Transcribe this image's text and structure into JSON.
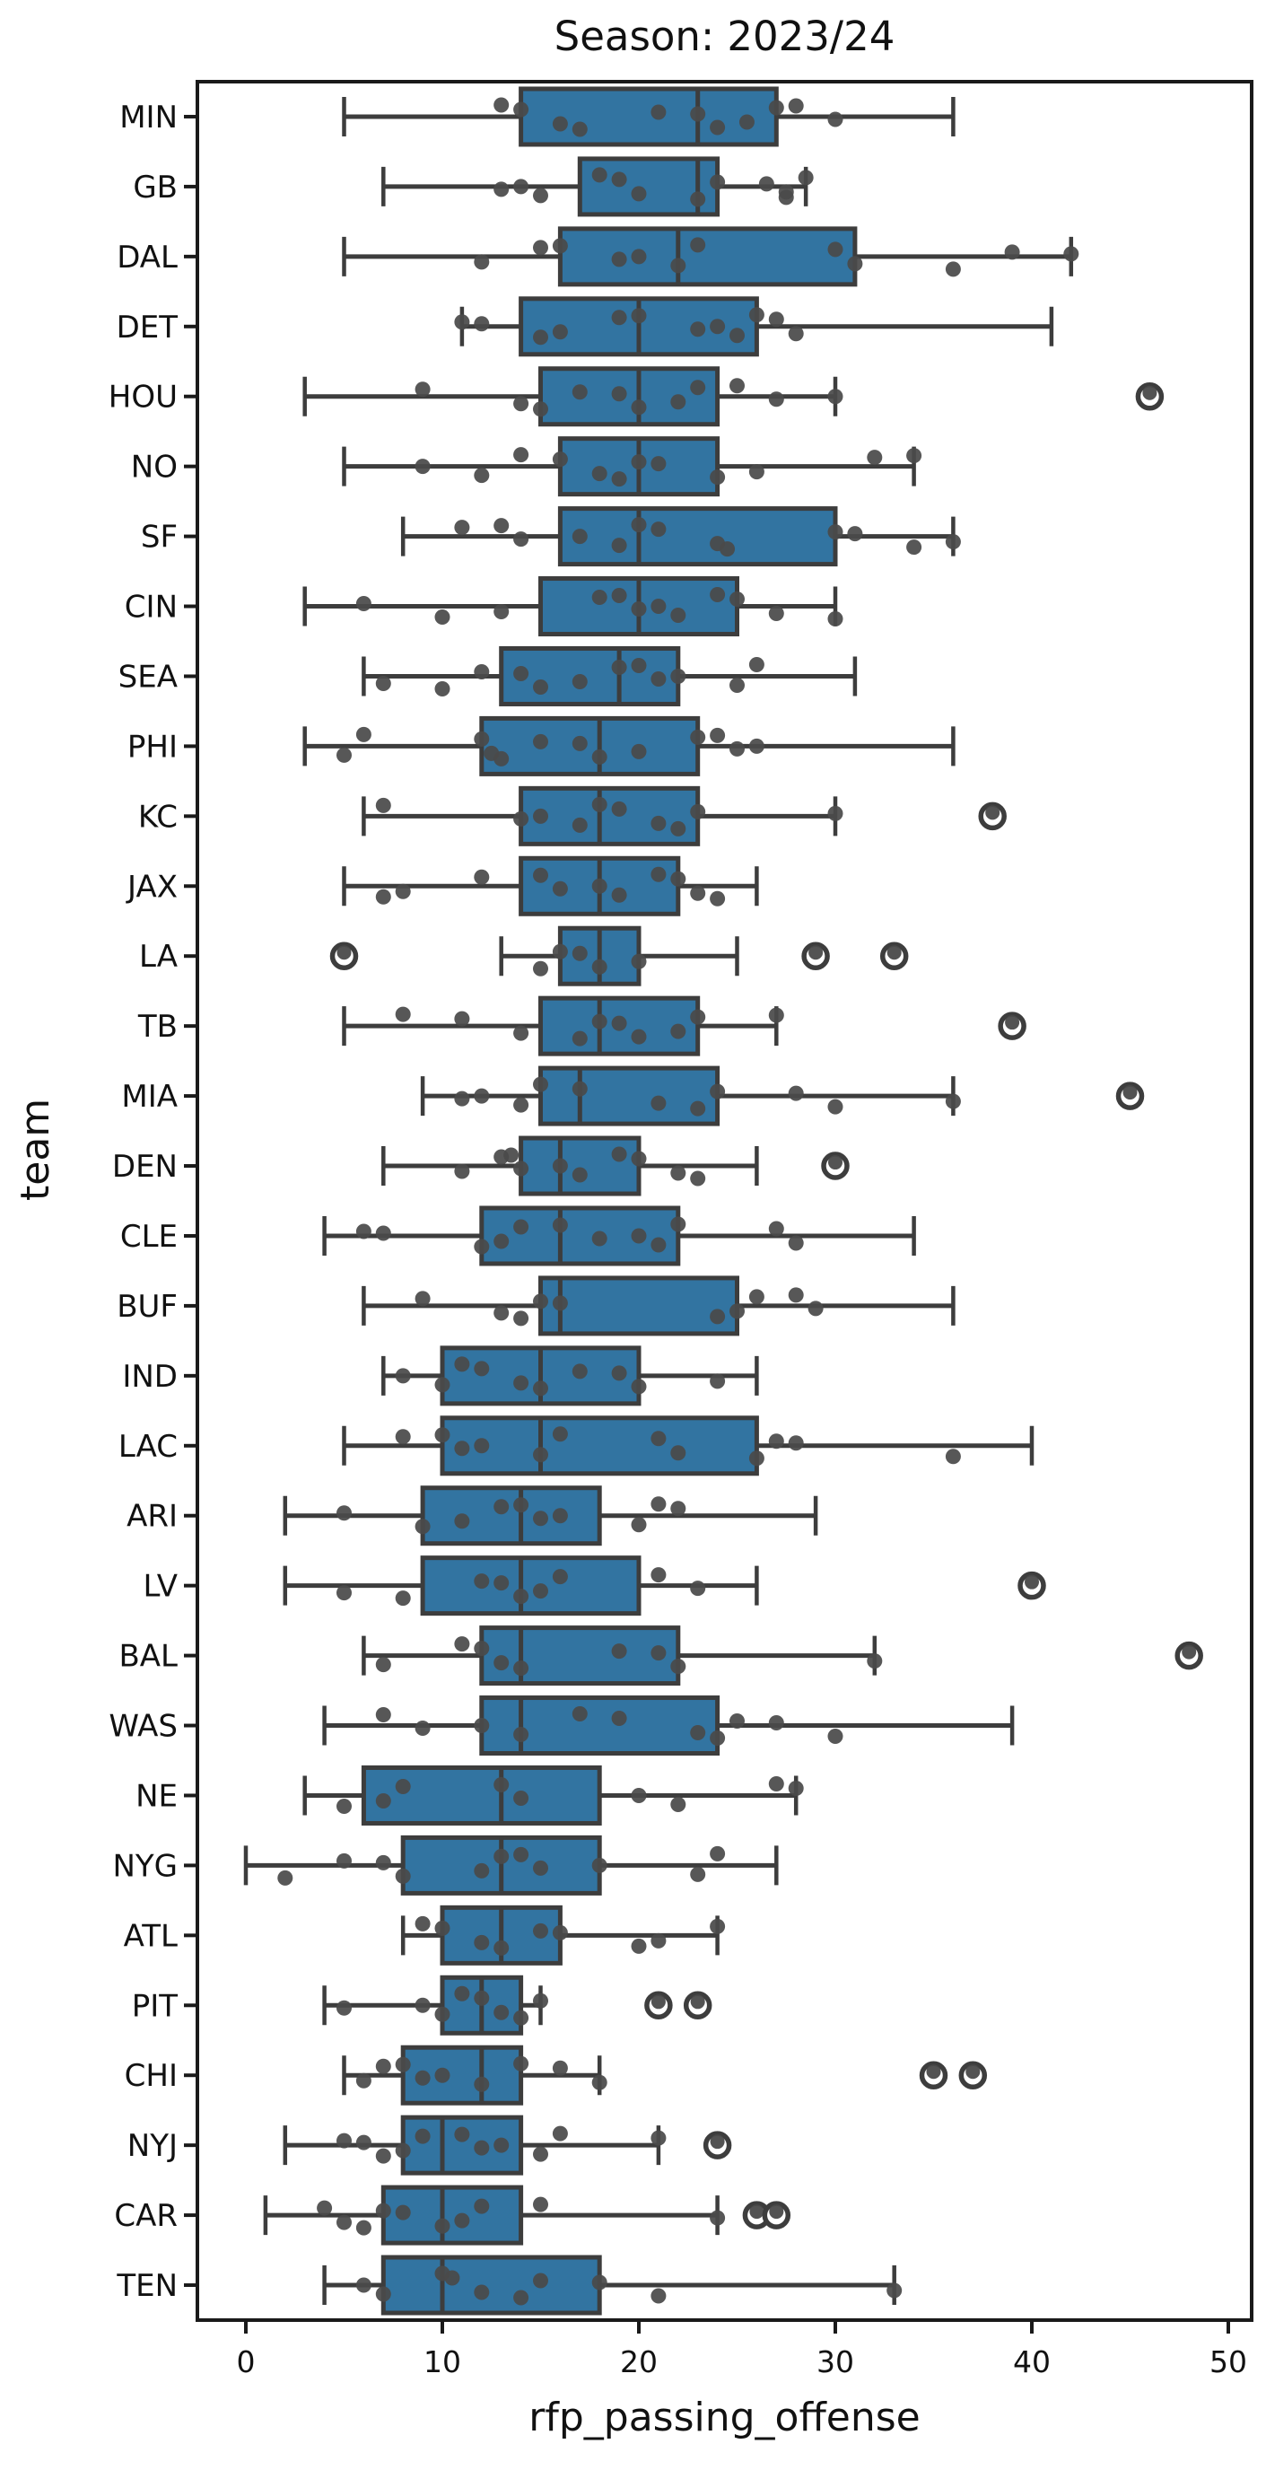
{
  "chart_data": {
    "type": "boxplot-horizontal",
    "title": "Season: 2023/24",
    "xlabel": "rfp_passing_offense",
    "ylabel": "team",
    "xlim": [
      -2.5,
      51
    ],
    "x_ticks": [
      0,
      10,
      20,
      30,
      40,
      50
    ],
    "grid": false,
    "colors": {
      "box_fill": "#3274A1",
      "box_edge": "#3D3D3D",
      "whisker": "#3D3D3D",
      "point": "#4A4A4A",
      "outlier_ring": "#3D3D3D",
      "spine": "#1A1A1A",
      "text": "#111111",
      "background": "#FFFFFF"
    },
    "series": [
      {
        "team": "MIN",
        "whislo": 5,
        "q1": 14,
        "med": 23,
        "q3": 27,
        "whishi": 36,
        "outliers": [],
        "points": [
          13,
          14,
          16,
          17,
          21,
          23,
          24,
          25.5,
          27,
          28,
          30
        ]
      },
      {
        "team": "GB",
        "whislo": 7,
        "q1": 17,
        "med": 23,
        "q3": 24,
        "whishi": 28.5,
        "outliers": [],
        "points": [
          13,
          14,
          15,
          18,
          19,
          20,
          23,
          24,
          26.5,
          27.5,
          27.5,
          28.5
        ]
      },
      {
        "team": "DAL",
        "whislo": 5,
        "q1": 16,
        "med": 22,
        "q3": 31,
        "whishi": 42,
        "outliers": [],
        "points": [
          12,
          15,
          16,
          19,
          20,
          22,
          23,
          30,
          31,
          36,
          39,
          42
        ]
      },
      {
        "team": "DET",
        "whislo": 11,
        "q1": 14,
        "med": 20,
        "q3": 26,
        "whishi": 41,
        "outliers": [],
        "points": [
          11,
          12,
          15,
          16,
          19,
          20,
          23,
          24,
          25,
          26,
          27,
          28
        ]
      },
      {
        "team": "HOU",
        "whislo": 3,
        "q1": 15,
        "med": 20,
        "q3": 24,
        "whishi": 30,
        "outliers": [
          46
        ],
        "points": [
          9,
          14,
          15,
          17,
          19,
          20,
          22,
          23,
          25,
          27,
          30
        ]
      },
      {
        "team": "NO",
        "whislo": 5,
        "q1": 16,
        "med": 20,
        "q3": 24,
        "whishi": 34,
        "outliers": [],
        "points": [
          9,
          12,
          14,
          16,
          18,
          19,
          20,
          21,
          24,
          26,
          32,
          34
        ]
      },
      {
        "team": "SF",
        "whislo": 8,
        "q1": 16,
        "med": 20,
        "q3": 30,
        "whishi": 36,
        "outliers": [],
        "points": [
          11,
          13,
          14,
          17,
          19,
          20,
          21,
          24,
          24.5,
          30,
          31,
          34,
          36
        ]
      },
      {
        "team": "CIN",
        "whislo": 3,
        "q1": 15,
        "med": 20,
        "q3": 25,
        "whishi": 30,
        "outliers": [],
        "points": [
          6,
          10,
          13,
          18,
          19,
          20,
          21,
          22,
          24,
          25,
          27,
          30
        ]
      },
      {
        "team": "SEA",
        "whislo": 6,
        "q1": 13,
        "med": 19,
        "q3": 22,
        "whishi": 31,
        "outliers": [],
        "points": [
          7,
          10,
          12,
          14,
          15,
          17,
          19,
          20,
          21,
          22,
          25,
          26
        ]
      },
      {
        "team": "PHI",
        "whislo": 3,
        "q1": 12,
        "med": 18,
        "q3": 23,
        "whishi": 36,
        "outliers": [],
        "points": [
          5,
          6,
          12,
          12.5,
          13,
          15,
          17,
          18,
          20,
          23,
          24,
          25,
          26
        ]
      },
      {
        "team": "KC",
        "whislo": 6,
        "q1": 14,
        "med": 18,
        "q3": 23,
        "whishi": 30,
        "outliers": [
          38
        ],
        "points": [
          7,
          14,
          15,
          17,
          18,
          19,
          21,
          22,
          23,
          30
        ]
      },
      {
        "team": "JAX",
        "whislo": 5,
        "q1": 14,
        "med": 18,
        "q3": 22,
        "whishi": 26,
        "outliers": [],
        "points": [
          7,
          8,
          12,
          15,
          16,
          18,
          19,
          21,
          22,
          23,
          24
        ]
      },
      {
        "team": "LA",
        "whislo": 13,
        "q1": 16,
        "med": 18,
        "q3": 20,
        "whishi": 25,
        "outliers": [
          5,
          29,
          33
        ],
        "points": [
          15,
          16,
          17,
          18,
          20
        ]
      },
      {
        "team": "TB",
        "whislo": 5,
        "q1": 15,
        "med": 18,
        "q3": 23,
        "whishi": 27,
        "outliers": [
          39
        ],
        "points": [
          8,
          11,
          14,
          17,
          18,
          19,
          20,
          22,
          23,
          27
        ]
      },
      {
        "team": "MIA",
        "whislo": 9,
        "q1": 15,
        "med": 17,
        "q3": 24,
        "whishi": 36,
        "outliers": [
          45
        ],
        "points": [
          11,
          12,
          14,
          15,
          17,
          21,
          23,
          24,
          28,
          30,
          36
        ]
      },
      {
        "team": "DEN",
        "whislo": 7,
        "q1": 14,
        "med": 16,
        "q3": 20,
        "whishi": 26,
        "outliers": [
          30
        ],
        "points": [
          11,
          13,
          13.5,
          14,
          16,
          17,
          19,
          20,
          22,
          23
        ]
      },
      {
        "team": "CLE",
        "whislo": 4,
        "q1": 12,
        "med": 16,
        "q3": 22,
        "whishi": 34,
        "outliers": [],
        "points": [
          6,
          7,
          12,
          13,
          14,
          16,
          18,
          20,
          21,
          22,
          27,
          28
        ]
      },
      {
        "team": "BUF",
        "whislo": 6,
        "q1": 15,
        "med": 16,
        "q3": 25,
        "whishi": 36,
        "outliers": [],
        "points": [
          9,
          13,
          14,
          15,
          16,
          24,
          25,
          26,
          28,
          29
        ]
      },
      {
        "team": "IND",
        "whislo": 7,
        "q1": 10,
        "med": 15,
        "q3": 20,
        "whishi": 26,
        "outliers": [],
        "points": [
          8,
          10,
          11,
          12,
          14,
          15,
          17,
          19,
          20,
          24
        ]
      },
      {
        "team": "LAC",
        "whislo": 5,
        "q1": 10,
        "med": 15,
        "q3": 26,
        "whishi": 40,
        "outliers": [],
        "points": [
          8,
          10,
          11,
          12,
          15,
          16,
          21,
          22,
          26,
          27,
          28,
          36
        ]
      },
      {
        "team": "ARI",
        "whislo": 2,
        "q1": 9,
        "med": 14,
        "q3": 18,
        "whishi": 29,
        "outliers": [],
        "points": [
          5,
          9,
          11,
          13,
          14,
          15,
          16,
          20,
          21,
          22
        ]
      },
      {
        "team": "LV",
        "whislo": 2,
        "q1": 9,
        "med": 14,
        "q3": 20,
        "whishi": 26,
        "outliers": [
          40
        ],
        "points": [
          5,
          8,
          12,
          13,
          14,
          15,
          16,
          21,
          23
        ]
      },
      {
        "team": "BAL",
        "whislo": 6,
        "q1": 12,
        "med": 14,
        "q3": 22,
        "whishi": 32,
        "outliers": [
          48
        ],
        "points": [
          7,
          11,
          12,
          13,
          14,
          19,
          21,
          22,
          32
        ]
      },
      {
        "team": "WAS",
        "whislo": 4,
        "q1": 12,
        "med": 14,
        "q3": 24,
        "whishi": 39,
        "outliers": [],
        "points": [
          7,
          9,
          12,
          14,
          17,
          19,
          23,
          24,
          25,
          27,
          30
        ]
      },
      {
        "team": "NE",
        "whislo": 3,
        "q1": 6,
        "med": 13,
        "q3": 18,
        "whishi": 28,
        "outliers": [],
        "points": [
          5,
          7,
          8,
          13,
          14,
          20,
          22,
          27,
          28
        ]
      },
      {
        "team": "NYG",
        "whislo": 0,
        "q1": 8,
        "med": 13,
        "q3": 18,
        "whishi": 27,
        "outliers": [],
        "points": [
          2,
          5,
          7,
          8,
          12,
          13,
          14,
          15,
          18,
          23,
          24
        ]
      },
      {
        "team": "ATL",
        "whislo": 8,
        "q1": 10,
        "med": 13,
        "q3": 16,
        "whishi": 24,
        "outliers": [],
        "points": [
          9,
          10,
          12,
          13,
          15,
          16,
          20,
          21,
          24
        ]
      },
      {
        "team": "PIT",
        "whislo": 4,
        "q1": 10,
        "med": 12,
        "q3": 14,
        "whishi": 15,
        "outliers": [
          21,
          23
        ],
        "points": [
          5,
          9,
          10,
          11,
          12,
          13,
          14,
          15
        ]
      },
      {
        "team": "CHI",
        "whislo": 5,
        "q1": 8,
        "med": 12,
        "q3": 14,
        "whishi": 18,
        "outliers": [
          35,
          37
        ],
        "points": [
          6,
          7,
          8,
          9,
          10,
          12,
          14,
          16,
          18
        ]
      },
      {
        "team": "NYJ",
        "whislo": 2,
        "q1": 8,
        "med": 10,
        "q3": 14,
        "whishi": 21,
        "outliers": [
          24
        ],
        "points": [
          5,
          6,
          7,
          8,
          9,
          11,
          12,
          13,
          15,
          16,
          21
        ]
      },
      {
        "team": "CAR",
        "whislo": 1,
        "q1": 7,
        "med": 10,
        "q3": 14,
        "whishi": 24,
        "outliers": [
          26,
          27
        ],
        "points": [
          4,
          5,
          6,
          7,
          8,
          10,
          11,
          12,
          15,
          24
        ]
      },
      {
        "team": "TEN",
        "whislo": 4,
        "q1": 7,
        "med": 10,
        "q3": 18,
        "whishi": 33,
        "outliers": [],
        "points": [
          6,
          7,
          10,
          10.5,
          12,
          14,
          15,
          18,
          21,
          33
        ]
      }
    ]
  }
}
